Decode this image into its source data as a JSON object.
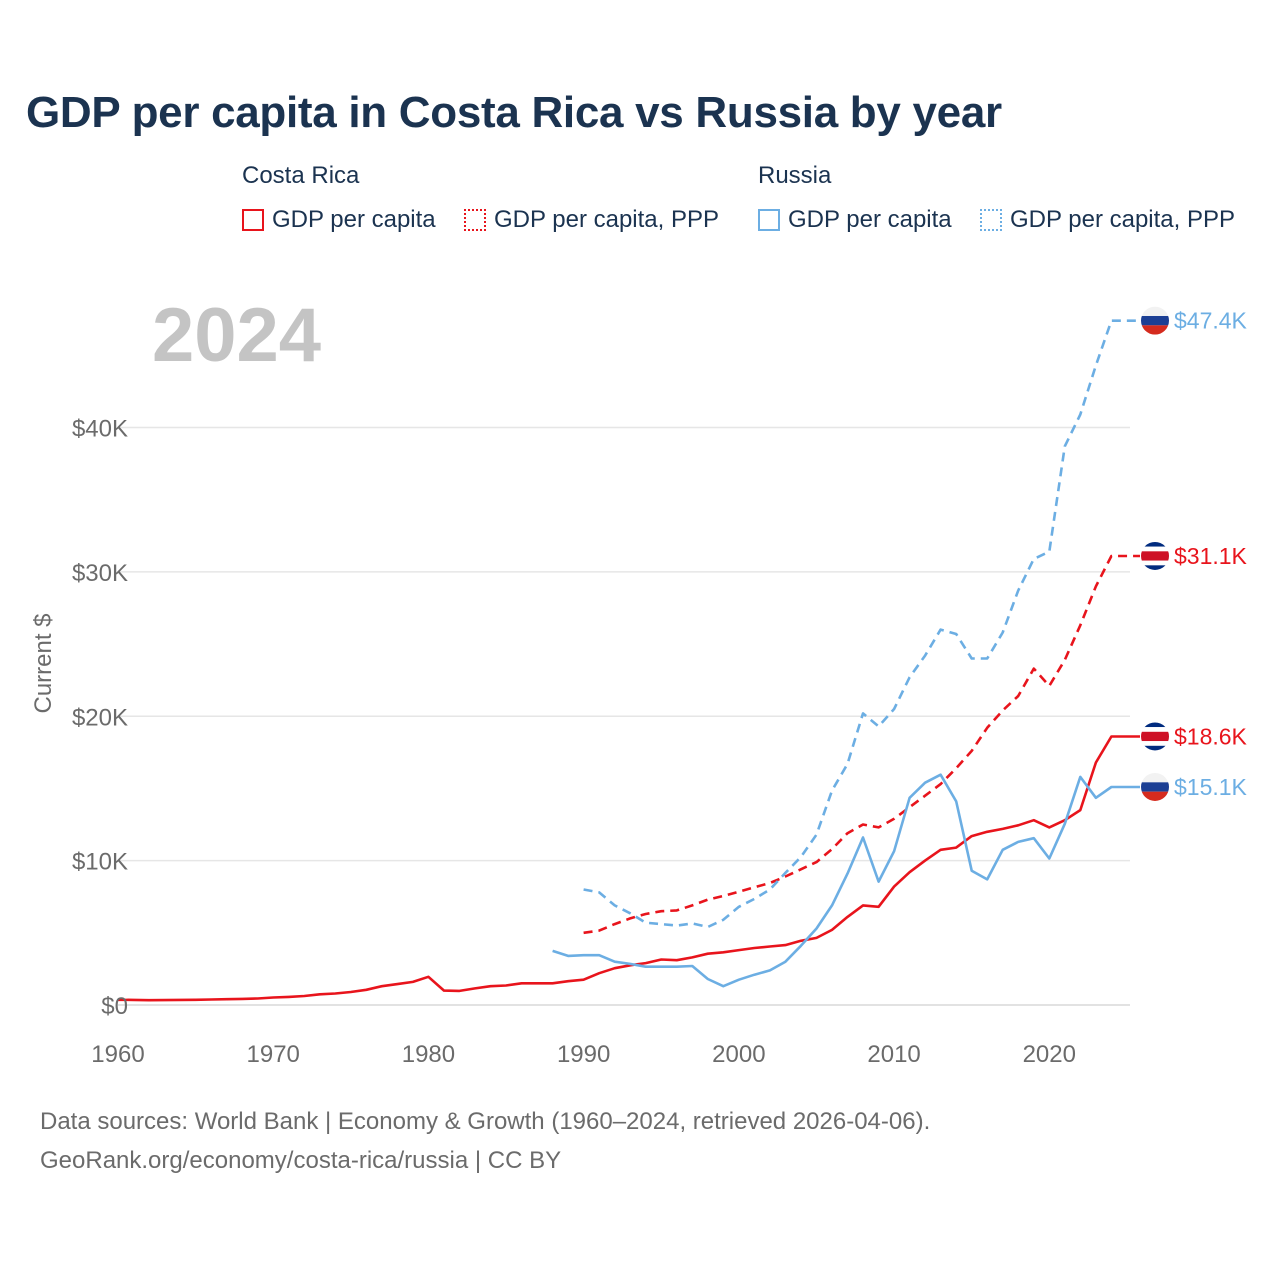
{
  "chart_data": {
    "type": "line",
    "title": "GDP per capita in Costa Rica vs Russia by year",
    "year_label": "2024",
    "ylabel": "Current $",
    "xlabel": "",
    "xlim": [
      1960,
      2025.2
    ],
    "ylim": [
      0,
      48000
    ],
    "x_ticks": [
      1960,
      1970,
      1980,
      1990,
      2000,
      2010,
      2020
    ],
    "y_ticks": [
      {
        "value": 0,
        "label": "$0"
      },
      {
        "value": 10000,
        "label": "$10K"
      },
      {
        "value": 20000,
        "label": "$20K"
      },
      {
        "value": 30000,
        "label": "$30K"
      },
      {
        "value": 40000,
        "label": "$40K"
      }
    ],
    "legend": {
      "groups": [
        {
          "title": "Costa Rica",
          "items": [
            "GDP per capita",
            "GDP per capita, PPP"
          ]
        },
        {
          "title": "Russia",
          "items": [
            "GDP per capita",
            "GDP per capita, PPP"
          ]
        }
      ]
    },
    "series": [
      {
        "name": "Costa Rica GDP per capita",
        "country": "Costa Rica",
        "color": "#e8141c",
        "style": "solid",
        "end_label": "$18.6K",
        "flag": "costa-rica",
        "x": [
          1960,
          1961,
          1962,
          1963,
          1964,
          1965,
          1966,
          1967,
          1968,
          1969,
          1970,
          1971,
          1972,
          1973,
          1974,
          1975,
          1976,
          1977,
          1978,
          1979,
          1980,
          1981,
          1982,
          1983,
          1984,
          1985,
          1986,
          1987,
          1988,
          1989,
          1990,
          1991,
          1992,
          1993,
          1994,
          1995,
          1996,
          1997,
          1998,
          1999,
          2000,
          2001,
          2002,
          2003,
          2004,
          2005,
          2006,
          2007,
          2008,
          2009,
          2010,
          2011,
          2012,
          2013,
          2014,
          2015,
          2016,
          2017,
          2018,
          2019,
          2020,
          2021,
          2022,
          2023,
          2024
        ],
        "values": [
          360,
          350,
          330,
          340,
          350,
          360,
          380,
          400,
          420,
          450,
          520,
          560,
          620,
          740,
          800,
          900,
          1050,
          1300,
          1450,
          1600,
          1950,
          1000,
          980,
          1150,
          1300,
          1350,
          1500,
          1500,
          1500,
          1650,
          1750,
          2200,
          2550,
          2750,
          2900,
          3150,
          3100,
          3300,
          3550,
          3650,
          3800,
          3950,
          4050,
          4150,
          4450,
          4650,
          5200,
          6100,
          6900,
          6800,
          8200,
          9200,
          10000,
          10750,
          10900,
          11700,
          12000,
          12200,
          12450,
          12800,
          12300,
          12800,
          13500,
          16800,
          18600
        ]
      },
      {
        "name": "Costa Rica GDP per capita, PPP",
        "country": "Costa Rica",
        "color": "#e8141c",
        "style": "dashed",
        "end_label": "$31.1K",
        "flag": "costa-rica",
        "x": [
          1990,
          1991,
          1992,
          1993,
          1994,
          1995,
          1996,
          1997,
          1998,
          1999,
          2000,
          2001,
          2002,
          2003,
          2004,
          2005,
          2006,
          2007,
          2008,
          2009,
          2010,
          2011,
          2012,
          2013,
          2014,
          2015,
          2016,
          2017,
          2018,
          2019,
          2020,
          2021,
          2022,
          2023,
          2024
        ],
        "values": [
          5000,
          5150,
          5600,
          6000,
          6300,
          6500,
          6550,
          6900,
          7300,
          7550,
          7850,
          8150,
          8450,
          8900,
          9400,
          9900,
          10800,
          11900,
          12500,
          12300,
          12900,
          13700,
          14500,
          15300,
          16400,
          17600,
          19200,
          20400,
          21400,
          23300,
          22100,
          23900,
          26300,
          29000,
          31100
        ]
      },
      {
        "name": "Russia GDP per capita",
        "country": "Russia",
        "color": "#6caee3",
        "style": "solid",
        "end_label": "$15.1K",
        "flag": "russia",
        "x": [
          1988,
          1989,
          1990,
          1991,
          1992,
          1993,
          1994,
          1995,
          1996,
          1997,
          1998,
          1999,
          2000,
          2001,
          2002,
          2003,
          2004,
          2005,
          2006,
          2007,
          2008,
          2009,
          2010,
          2011,
          2012,
          2013,
          2014,
          2015,
          2016,
          2017,
          2018,
          2019,
          2020,
          2021,
          2022,
          2023,
          2024
        ],
        "values": [
          3750,
          3400,
          3450,
          3450,
          3000,
          2850,
          2650,
          2650,
          2650,
          2700,
          1800,
          1300,
          1750,
          2100,
          2400,
          3000,
          4100,
          5300,
          6900,
          9100,
          11600,
          8550,
          10650,
          14350,
          15400,
          15950,
          14100,
          9300,
          8700,
          10750,
          11300,
          11550,
          10150,
          12550,
          15800,
          14350,
          15100
        ]
      },
      {
        "name": "Russia GDP per capita, PPP",
        "country": "Russia",
        "color": "#6caee3",
        "style": "dashed",
        "end_label": "$47.4K",
        "flag": "russia",
        "x": [
          1990,
          1991,
          1992,
          1993,
          1994,
          1995,
          1996,
          1997,
          1998,
          1999,
          2000,
          2001,
          2002,
          2003,
          2004,
          2005,
          2006,
          2007,
          2008,
          2009,
          2010,
          2011,
          2012,
          2013,
          2014,
          2015,
          2016,
          2017,
          2018,
          2019,
          2020,
          2021,
          2022,
          2023,
          2024
        ],
        "values": [
          8000,
          7800,
          6900,
          6350,
          5700,
          5600,
          5500,
          5650,
          5400,
          5900,
          6800,
          7350,
          8000,
          9150,
          10250,
          11800,
          14850,
          16700,
          20200,
          19300,
          20500,
          22700,
          24200,
          26000,
          25700,
          24000,
          24000,
          25800,
          28700,
          30900,
          31400,
          38700,
          40900,
          44300,
          47400
        ]
      }
    ]
  },
  "footer": {
    "line1": "Data sources: World Bank | Economy & Growth (1960–2024, retrieved 2026-04-06).",
    "line2": "GeoRank.org/economy/costa-rica/russia | CC BY"
  },
  "colors": {
    "costa_rica": "#e8141c",
    "russia": "#6caee3",
    "title": "#1b3350",
    "axis_text": "#6b6b6b",
    "grid": "#e6e6e6",
    "year_label": "#c4c4c4"
  }
}
